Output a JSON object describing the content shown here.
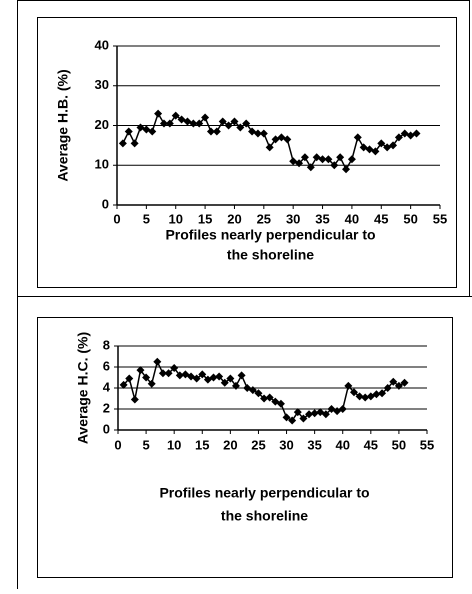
{
  "chart_data": [
    {
      "type": "line",
      "ylabel": "Average H.B. (%)",
      "xlabel": [
        "Profiles nearly perpendicular to",
        "the shoreline"
      ],
      "x": [
        1,
        2,
        3,
        4,
        5,
        6,
        7,
        8,
        9,
        10,
        11,
        12,
        13,
        14,
        15,
        16,
        17,
        18,
        19,
        20,
        21,
        22,
        23,
        24,
        25,
        26,
        27,
        28,
        29,
        30,
        31,
        32,
        33,
        34,
        35,
        36,
        37,
        38,
        39,
        40,
        41,
        42,
        43,
        44,
        45,
        46,
        47,
        48,
        49,
        50,
        51
      ],
      "values": [
        15.5,
        18.5,
        15.5,
        19.5,
        19,
        18.5,
        23,
        20.5,
        20.5,
        22.5,
        21.5,
        21,
        20.5,
        20.5,
        22,
        18.5,
        18.5,
        21,
        20,
        21,
        19.5,
        20.5,
        18.5,
        18,
        18,
        14.5,
        16.5,
        17,
        16.5,
        11,
        10.5,
        12,
        9.5,
        12,
        11.5,
        11.5,
        10,
        12,
        9,
        11.5,
        17,
        14.5,
        14,
        13.5,
        15.5,
        14.5,
        15,
        17,
        18,
        17.5,
        18
      ],
      "color": "#000000",
      "xlim": [
        0,
        55
      ],
      "xticks": [
        0,
        5,
        10,
        15,
        20,
        25,
        30,
        35,
        40,
        45,
        50,
        55
      ],
      "ylim": [
        0,
        40
      ],
      "yticks": [
        0,
        10,
        20,
        30,
        40
      ],
      "grid": true
    },
    {
      "type": "line",
      "ylabel": "Average H.C. (%)",
      "xlabel": [
        "Profiles nearly perpendicular to",
        "the shoreline"
      ],
      "x": [
        1,
        2,
        3,
        4,
        5,
        6,
        7,
        8,
        9,
        10,
        11,
        12,
        13,
        14,
        15,
        16,
        17,
        18,
        19,
        20,
        21,
        22,
        23,
        24,
        25,
        26,
        27,
        28,
        29,
        30,
        31,
        32,
        33,
        34,
        35,
        36,
        37,
        38,
        39,
        40,
        41,
        42,
        43,
        44,
        45,
        46,
        47,
        48,
        49,
        50,
        51
      ],
      "values": [
        4.3,
        4.9,
        2.9,
        5.7,
        5,
        4.4,
        6.5,
        5.4,
        5.4,
        5.9,
        5.2,
        5.3,
        5.1,
        4.9,
        5.3,
        4.8,
        5,
        5.1,
        4.5,
        4.9,
        4.2,
        5.2,
        4,
        3.8,
        3.5,
        3,
        3.1,
        2.7,
        2.5,
        1.2,
        0.9,
        1.7,
        1.1,
        1.5,
        1.6,
        1.7,
        1.5,
        2,
        1.8,
        2,
        4.2,
        3.6,
        3.2,
        3.1,
        3.2,
        3.4,
        3.5,
        4,
        4.6,
        4.2,
        4.5
      ],
      "color": "#000000",
      "xlim": [
        0,
        55
      ],
      "xticks": [
        0,
        5,
        10,
        15,
        20,
        25,
        30,
        35,
        40,
        45,
        50,
        55
      ],
      "ylim": [
        0,
        8
      ],
      "yticks": [
        0,
        2,
        4,
        6,
        8
      ],
      "grid": true
    }
  ]
}
